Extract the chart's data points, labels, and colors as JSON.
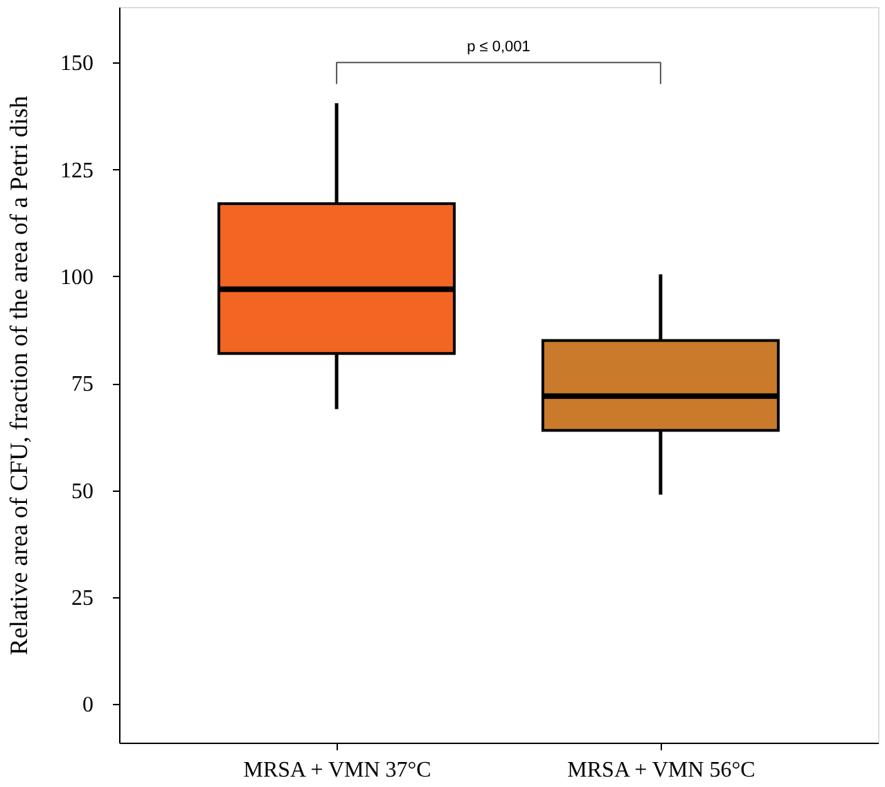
{
  "chart_data": {
    "type": "box",
    "ylabel": "Relative area of CFU, fraction of the area of a Petri dish",
    "categories": [
      "MRSA + VMN 37°C",
      "MRSA + VMN 56°C"
    ],
    "colors": [
      "#f26522",
      "#c97b2b"
    ],
    "boxes": [
      {
        "low": 69,
        "q1": 82,
        "median": 97,
        "q3": 117,
        "high": 140.5
      },
      {
        "low": 49,
        "q1": 64,
        "median": 72,
        "q3": 85,
        "high": 100.5
      }
    ],
    "ylim": [
      -9,
      163
    ],
    "yticks": [
      0,
      25,
      50,
      75,
      100,
      125,
      150
    ],
    "grid": false,
    "legend": false,
    "annotations": [
      "p ≤ 0,001"
    ]
  }
}
